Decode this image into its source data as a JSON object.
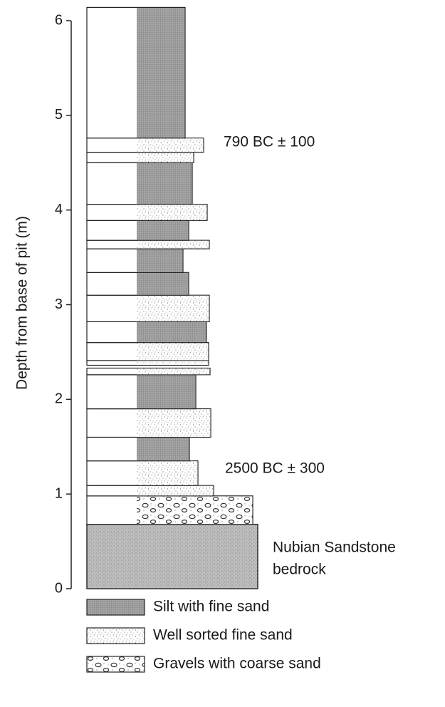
{
  "axis": {
    "label": "Depth from base of pit (m)",
    "ylim": [
      0,
      6
    ],
    "yticks": [
      0,
      1,
      2,
      3,
      4,
      5,
      6
    ]
  },
  "bedrock": {
    "bottom": 0,
    "top": 0.68,
    "label": [
      "Nubian Sandstone",
      "bedrock"
    ]
  },
  "layers": [
    {
      "material": "Gravels with coarse sand",
      "bottom": 0.68,
      "top": 0.98
    },
    {
      "material": "Well sorted fine sand",
      "bottom": 0.98,
      "top": 1.09
    },
    {
      "material": "Well sorted fine sand",
      "bottom": 1.09,
      "top": 1.35
    },
    {
      "material": "Silt with fine sand",
      "bottom": 1.35,
      "top": 1.6
    },
    {
      "material": "Well sorted fine sand",
      "bottom": 1.6,
      "top": 1.9
    },
    {
      "material": "Silt with fine sand",
      "bottom": 1.9,
      "top": 2.26
    },
    {
      "material": "Well sorted fine sand",
      "bottom": 2.26,
      "top": 2.33
    },
    {
      "material": "Well sorted fine sand",
      "bottom": 2.36,
      "top": 2.41
    },
    {
      "material": "Well sorted fine sand",
      "bottom": 2.41,
      "top": 2.6
    },
    {
      "material": "Silt with fine sand",
      "bottom": 2.6,
      "top": 2.82
    },
    {
      "material": "Well sorted fine sand",
      "bottom": 2.82,
      "top": 3.1
    },
    {
      "material": "Silt with fine sand",
      "bottom": 3.1,
      "top": 3.34
    },
    {
      "material": "Silt with fine sand",
      "bottom": 3.34,
      "top": 3.59
    },
    {
      "material": "Well sorted fine sand",
      "bottom": 3.59,
      "top": 3.68
    },
    {
      "material": "Silt with fine sand",
      "bottom": 3.68,
      "top": 3.89
    },
    {
      "material": "Well sorted fine sand",
      "bottom": 3.89,
      "top": 4.06
    },
    {
      "material": "Silt with fine sand",
      "bottom": 4.06,
      "top": 4.5
    },
    {
      "material": "Well sorted fine sand",
      "bottom": 4.5,
      "top": 4.61
    },
    {
      "material": "Well sorted fine sand",
      "bottom": 4.61,
      "top": 4.76
    },
    {
      "material": "Silt with fine sand",
      "bottom": 4.76,
      "top": 6.14
    }
  ],
  "annotations": [
    "790 BC ± 100",
    "2500 BC ± 300"
  ],
  "legend": [
    "Silt with fine sand",
    "Well sorted fine sand",
    "Gravels with coarse sand"
  ]
}
